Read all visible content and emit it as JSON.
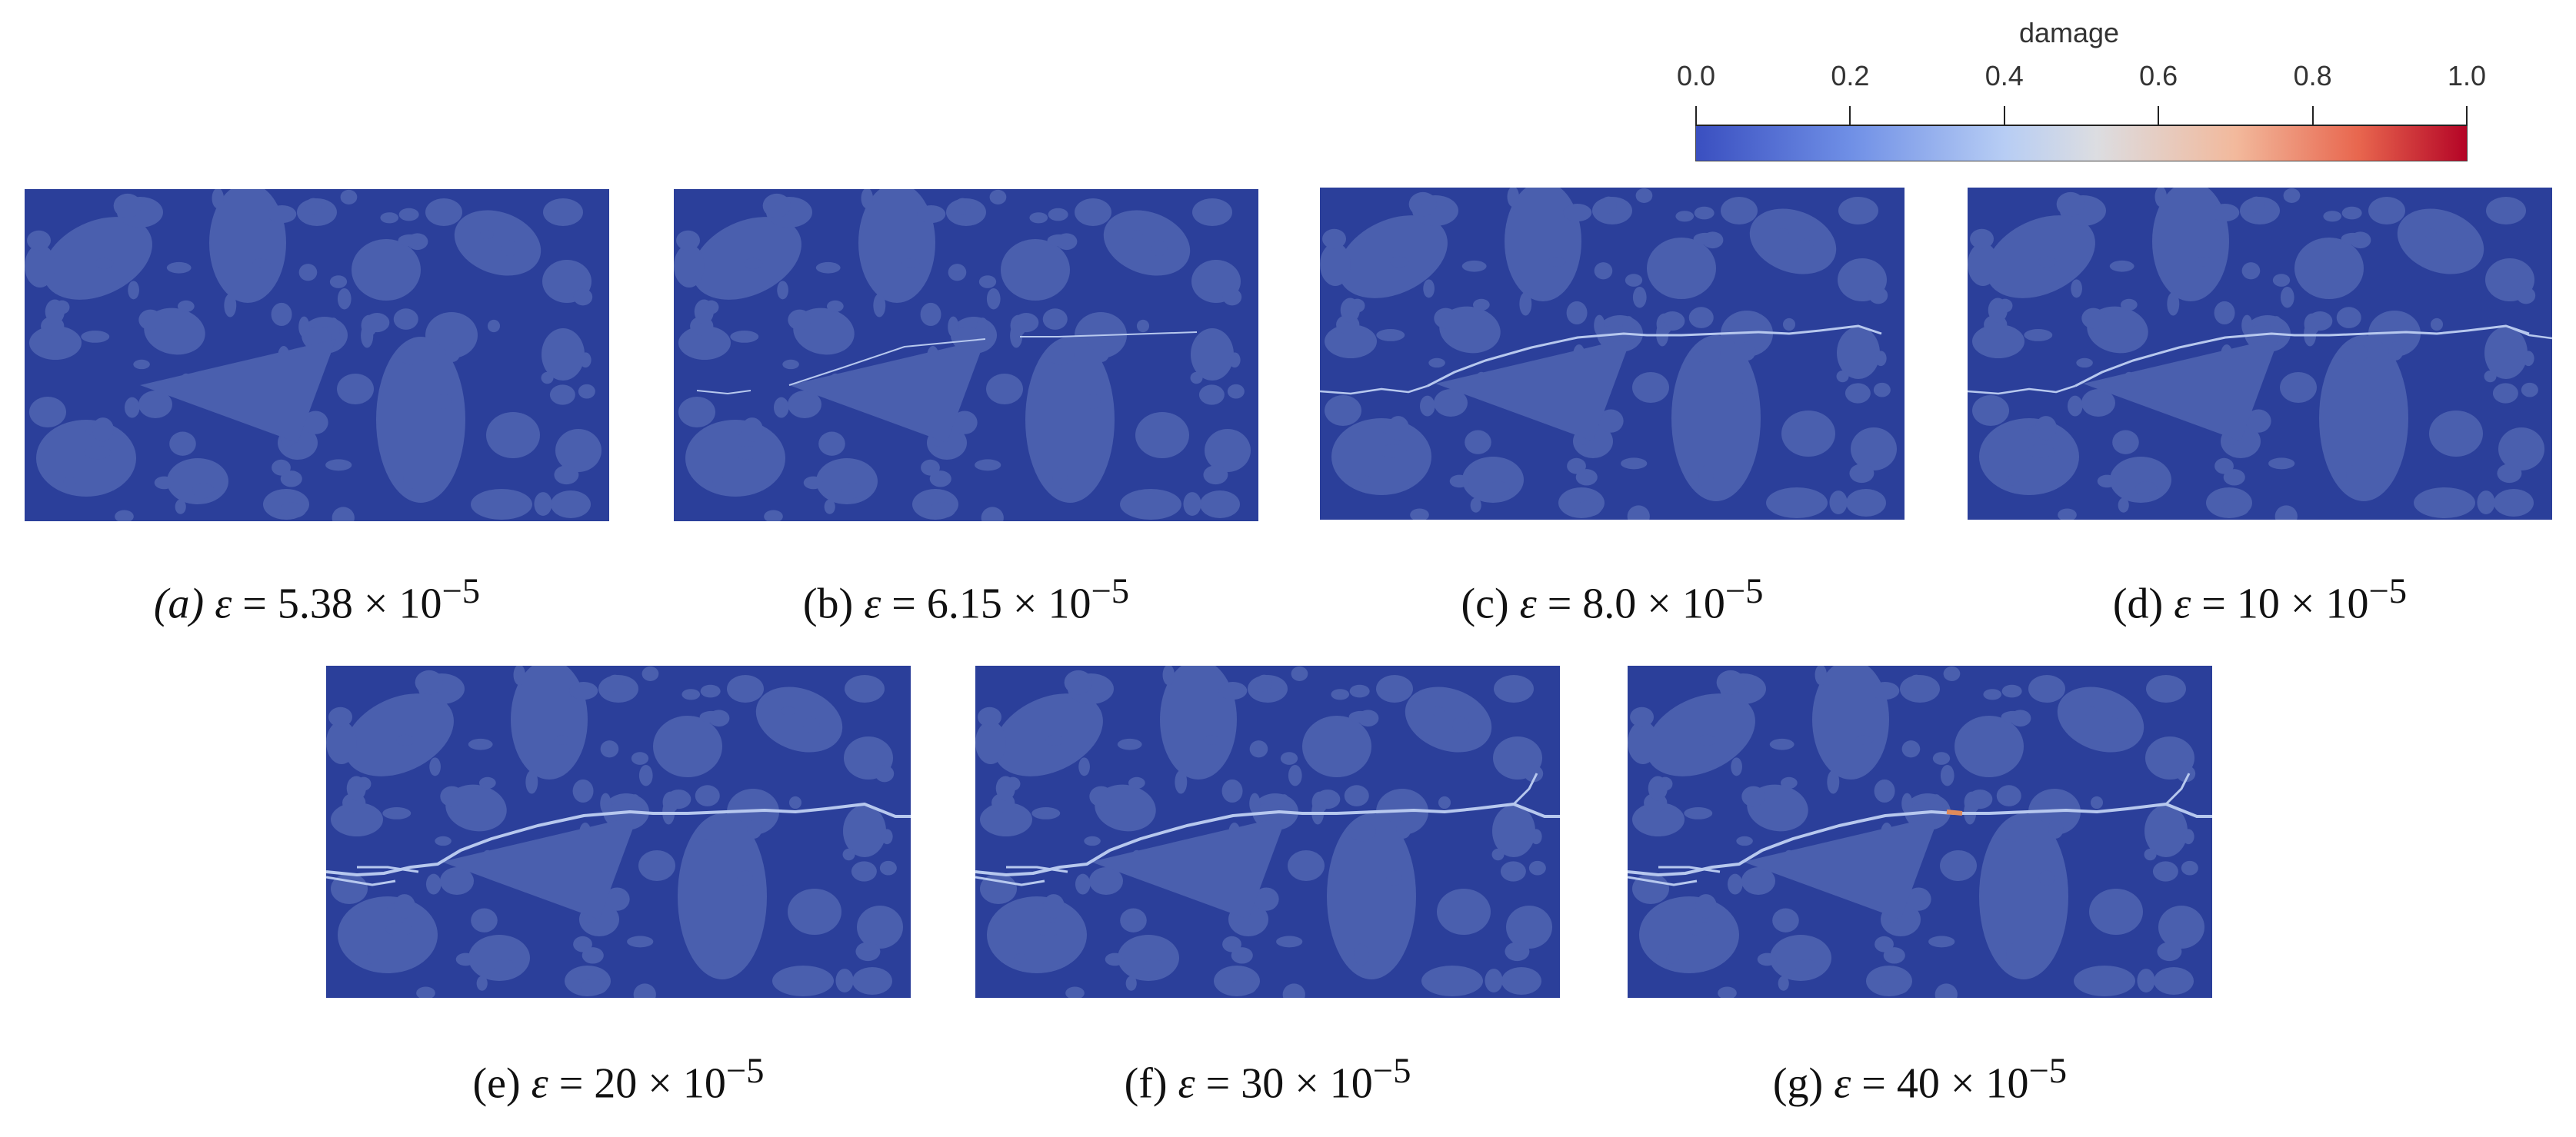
{
  "legend": {
    "title": "damage",
    "ticks": [
      "0.0",
      "0.2",
      "0.4",
      "0.6",
      "0.8",
      "1.0"
    ],
    "colors": {
      "low": "#3a4fc0",
      "mid": "#dcdde1",
      "high": "#b40426"
    }
  },
  "panels": [
    {
      "label": "(a)",
      "eps_symbol": "ε",
      "value_text": " = 5.38 × 10",
      "exponent": "−5",
      "stage": 0
    },
    {
      "label": "(b)",
      "eps_symbol": "ε",
      "value_text": " = 6.15 × 10",
      "exponent": "−5",
      "stage": 1
    },
    {
      "label": "(c)",
      "eps_symbol": "ε",
      "value_text": " = 8.0 × 10",
      "exponent": "−5",
      "stage": 2
    },
    {
      "label": "(d)",
      "eps_symbol": "ε",
      "value_text": " = 10 × 10",
      "exponent": "−5",
      "stage": 3
    },
    {
      "label": "(e)",
      "eps_symbol": "ε",
      "value_text": " = 20 × 10",
      "exponent": "−5",
      "stage": 4
    },
    {
      "label": "(f)",
      "eps_symbol": "ε",
      "value_text": " = 30 × 10",
      "exponent": "−5",
      "stage": 5
    },
    {
      "label": "(g)",
      "eps_symbol": "ε",
      "value_text": " = 40 × 10",
      "exponent": "−5",
      "stage": 6
    }
  ],
  "colors": {
    "matrix": "#2b3f9a",
    "aggregate": "#4a5fae",
    "crack": "#b7c8ee",
    "crack_core": "#e08a5a"
  }
}
